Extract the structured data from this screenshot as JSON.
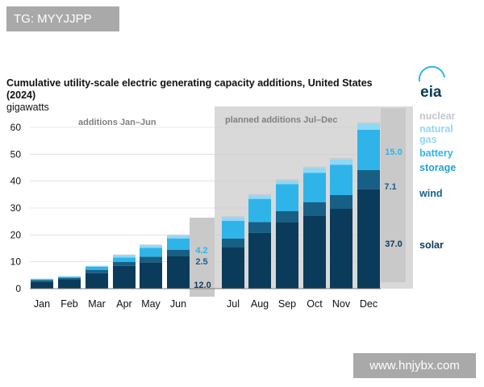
{
  "tag": "TG: MYYJJPP",
  "watermark": "www.hnjybx.com",
  "logo": "eia",
  "chart_data": {
    "type": "bar",
    "stacked": true,
    "title_line1": "Cumulative utility-scale electric generating capacity additions, United States",
    "title_line2": "(2024)",
    "ylabel": "gigawatts",
    "ylim": [
      0,
      62
    ],
    "yticks": [
      0,
      10,
      20,
      30,
      40,
      50,
      60
    ],
    "categories": [
      "Jan",
      "Feb",
      "Mar",
      "Apr",
      "May",
      "Jun",
      "Jul",
      "Aug",
      "Sep",
      "Oct",
      "Nov",
      "Dec"
    ],
    "series": [
      {
        "name": "solar",
        "color": "#0b3b5a",
        "values": [
          2.6,
          3.3,
          5.8,
          8.5,
          9.8,
          12.0,
          15.5,
          20.8,
          24.6,
          27.2,
          29.7,
          37.0
        ]
      },
      {
        "name": "wind",
        "color": "#185f86",
        "values": [
          0.6,
          0.7,
          1.2,
          1.4,
          2.1,
          2.5,
          3.1,
          4.0,
          4.2,
          5.0,
          5.1,
          7.1
        ]
      },
      {
        "name": "battery storage",
        "color": "#2fb4ea",
        "values": [
          0.3,
          0.4,
          1.1,
          1.7,
          3.3,
          4.2,
          6.6,
          8.6,
          10.1,
          10.9,
          11.3,
          15.0
        ]
      },
      {
        "name": "natural gas",
        "color": "#8fd8f6",
        "values": [
          0.2,
          0.2,
          0.4,
          0.7,
          0.7,
          0.9,
          1.3,
          1.3,
          1.3,
          1.8,
          2.0,
          2.3
        ]
      },
      {
        "name": "nuclear",
        "color": "#c8ccd0",
        "values": [
          0,
          0,
          0,
          0.4,
          0.5,
          0.5,
          0.5,
          0.5,
          0.5,
          0.5,
          0.5,
          0.5
        ]
      }
    ],
    "annotations": {
      "actual_label": "additions Jan–Jun",
      "planned_label": "planned additions Jul–Dec",
      "jun_labels": {
        "battery": "4.2",
        "wind": "2.5",
        "solar": "12.0"
      },
      "dec_labels": {
        "battery": "15.0",
        "wind": "7.1",
        "solar": "37.0"
      }
    },
    "legend_position": "right",
    "legend": [
      {
        "label": "nuclear",
        "color": "#c3c7cb"
      },
      {
        "label": "natural",
        "color": "#8fd8f6"
      },
      {
        "label": "gas",
        "color": "#8fd8f6"
      },
      {
        "label": "battery",
        "color": "#2fb4ea"
      },
      {
        "label": "storage",
        "color": "#2a9fd2"
      },
      {
        "label": "wind",
        "color": "#185f86"
      },
      {
        "label": "solar",
        "color": "#0b3b5a"
      }
    ]
  }
}
